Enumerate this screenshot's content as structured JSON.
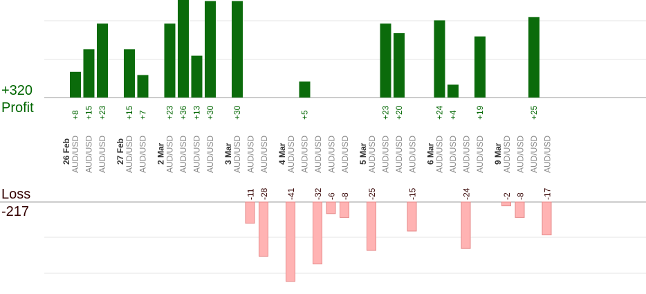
{
  "summary": {
    "profit_total": "+320",
    "profit_title": "Profit",
    "loss_title": "Loss",
    "loss_total": "-217"
  },
  "colors": {
    "profit_bar": "#0b6b0b",
    "profit_text": "#006600",
    "loss_bar": "#ffb3b3",
    "loss_bar_stroke": "#e58a8a",
    "loss_text": "#330000",
    "grid": "#e6e6e6",
    "baseline": "#999999"
  },
  "chart_data": {
    "type": "bar",
    "instrument_label": "AUD/USD",
    "groups": [
      {
        "date": "26 Feb",
        "slots": [
          8,
          15,
          23
        ]
      },
      {
        "date": "27 Feb",
        "slots": [
          15,
          7
        ]
      },
      {
        "date": "2 Mar",
        "slots": [
          23,
          36,
          13,
          30
        ]
      },
      {
        "date": "3 Mar",
        "slots": [
          30,
          -11,
          -28
        ]
      },
      {
        "date": "4 Mar",
        "slots": [
          -41,
          5,
          -32,
          -6,
          -8
        ]
      },
      {
        "date": "5 Mar",
        "slots": [
          -25,
          23,
          20,
          -15
        ]
      },
      {
        "date": "6 Mar",
        "slots": [
          24,
          4,
          -24,
          19
        ]
      },
      {
        "date": "9 Mar",
        "slots": [
          -2,
          -8,
          25,
          -17
        ]
      }
    ],
    "series": [
      {
        "name": "Profit",
        "sign": "positive"
      },
      {
        "name": "Loss",
        "sign": "negative"
      }
    ],
    "grid": true
  }
}
